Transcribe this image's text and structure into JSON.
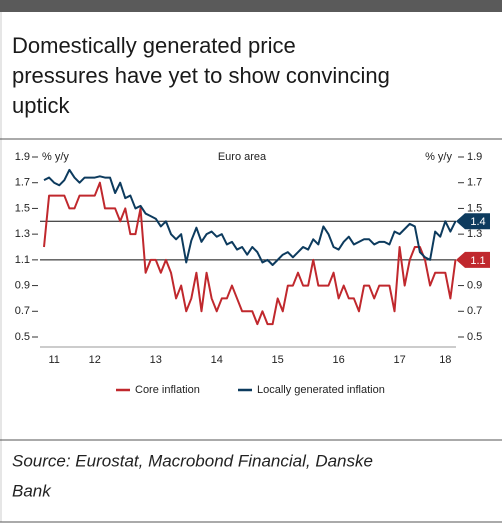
{
  "chart_data": {
    "type": "line",
    "title_lines": [
      "Domestically generated price",
      "pressures have yet to show convincing",
      "uptick"
    ],
    "subtitle": "Euro area",
    "ylabel": "% y/y",
    "y2label": "% y/y",
    "source": [
      "Source: Eurostat, Macrobond Financial, Danske",
      "Bank"
    ],
    "categories": [
      null,
      null,
      "11",
      null,
      null,
      null,
      null,
      null,
      null,
      null,
      "12",
      null,
      null,
      null,
      null,
      null,
      null,
      null,
      null,
      null,
      null,
      null,
      "13",
      null,
      null,
      null,
      null,
      null,
      null,
      null,
      null,
      null,
      null,
      null,
      "14",
      null,
      null,
      null,
      null,
      null,
      null,
      null,
      null,
      null,
      null,
      null,
      "15",
      null,
      null,
      null,
      null,
      null,
      null,
      null,
      null,
      null,
      null,
      null,
      "16",
      null,
      null,
      null,
      null,
      null,
      null,
      null,
      null,
      null,
      null,
      null,
      "17",
      null,
      null,
      null,
      null,
      null,
      null,
      null,
      null,
      "18",
      null,
      null
    ],
    "series": [
      {
        "name": "Core inflation",
        "color": "#c0282d",
        "values": [
          1.2,
          1.6,
          1.6,
          1.6,
          1.6,
          1.5,
          1.5,
          1.6,
          1.6,
          1.6,
          1.6,
          1.7,
          1.5,
          1.5,
          1.5,
          1.4,
          1.5,
          1.3,
          1.3,
          1.5,
          1.0,
          1.1,
          1.1,
          1.0,
          1.1,
          1.0,
          0.8,
          0.9,
          0.7,
          0.8,
          1.0,
          0.7,
          1.0,
          0.8,
          0.7,
          0.8,
          0.8,
          0.9,
          0.8,
          0.7,
          0.7,
          0.7,
          0.6,
          0.7,
          0.6,
          0.6,
          0.8,
          0.7,
          0.9,
          0.9,
          1.0,
          0.9,
          0.9,
          1.1,
          0.9,
          0.9,
          0.9,
          1.0,
          0.8,
          0.9,
          0.8,
          0.8,
          0.7,
          0.9,
          0.9,
          0.8,
          0.9,
          0.9,
          0.9,
          0.7,
          1.2,
          0.9,
          1.1,
          1.2,
          1.2,
          1.1,
          0.9,
          1.0,
          1.0,
          1.0,
          0.8,
          1.1
        ]
      },
      {
        "name": "Locally generated inflation",
        "color": "#0d3b5e",
        "values": [
          1.72,
          1.74,
          1.7,
          1.68,
          1.72,
          1.8,
          1.74,
          1.7,
          1.74,
          1.74,
          1.74,
          1.75,
          1.74,
          1.74,
          1.62,
          1.7,
          1.58,
          1.6,
          1.5,
          1.52,
          1.46,
          1.44,
          1.42,
          1.36,
          1.4,
          1.3,
          1.26,
          1.3,
          1.08,
          1.25,
          1.35,
          1.24,
          1.3,
          1.32,
          1.28,
          1.3,
          1.22,
          1.24,
          1.18,
          1.2,
          1.14,
          1.2,
          1.16,
          1.08,
          1.1,
          1.06,
          1.1,
          1.14,
          1.16,
          1.12,
          1.16,
          1.2,
          1.18,
          1.26,
          1.22,
          1.36,
          1.3,
          1.2,
          1.18,
          1.24,
          1.28,
          1.22,
          1.24,
          1.26,
          1.26,
          1.22,
          1.24,
          1.24,
          1.22,
          1.32,
          1.3,
          1.34,
          1.38,
          1.36,
          1.16,
          1.12,
          1.1,
          1.32,
          1.28,
          1.4,
          1.32,
          1.4
        ]
      }
    ],
    "reference_lines": [
      {
        "value": 1.4,
        "color": "#0d3b5e"
      },
      {
        "value": 1.1,
        "color": "#c0282d"
      }
    ],
    "ylim": [
      0.5,
      1.9
    ],
    "yticks": [
      0.5,
      0.7,
      0.9,
      1.1,
      1.3,
      1.5,
      1.7,
      1.9
    ],
    "y2lim": [
      0.5,
      1.9
    ],
    "y2ticks": [
      0.5,
      0.7,
      0.9,
      1.1,
      1.3,
      1.5,
      1.7,
      1.9
    ],
    "legend": "bottom"
  }
}
